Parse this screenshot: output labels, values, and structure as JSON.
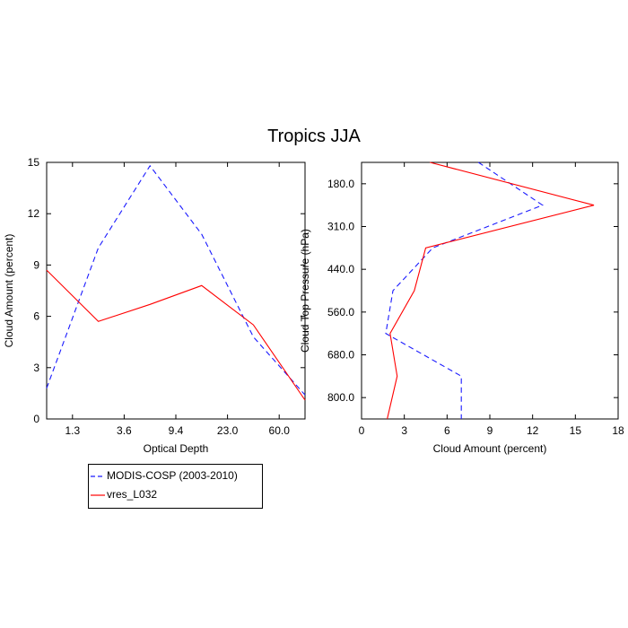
{
  "title": "Tropics JJA",
  "colors": {
    "modis": "#1a1aff",
    "model": "#ff0000",
    "axis": "#000000"
  },
  "legend": {
    "entries": [
      {
        "label": "MODIS-COSP (2003-2010)",
        "color": "#1a1aff",
        "dash": true
      },
      {
        "label": "vres_L032",
        "color": "#ff0000",
        "dash": false
      }
    ]
  },
  "chart_data": [
    {
      "type": "line",
      "xlabel": "Optical Depth",
      "ylabel": "Cloud Amount (percent)",
      "x_tick_labels": [
        "1.3",
        "3.6",
        "9.4",
        "23.0",
        "60.0"
      ],
      "y_ticks": [
        "0",
        "3",
        "6",
        "9",
        "12",
        "15"
      ],
      "ylim": [
        0,
        15
      ],
      "grid": false,
      "x_categories_count": 6,
      "series": [
        {
          "name": "MODIS-COSP (2003-2010)",
          "x": [
            0,
            1,
            2,
            3,
            4,
            5
          ],
          "values": [
            1.8,
            10.0,
            14.8,
            10.8,
            4.8,
            1.4
          ]
        },
        {
          "name": "vres_L032",
          "x": [
            0,
            1,
            2,
            3,
            4,
            5
          ],
          "values": [
            8.7,
            5.7,
            6.7,
            7.8,
            5.5,
            1.1
          ]
        }
      ]
    },
    {
      "type": "line",
      "xlabel": "Cloud Amount (percent)",
      "ylabel": "Cloud Top Pressure (hPa)",
      "x_ticks": [
        "0",
        "3",
        "6",
        "9",
        "12",
        "15",
        "18"
      ],
      "xlim": [
        0,
        18
      ],
      "y_tick_labels": [
        "180.0",
        "310.0",
        "440.0",
        "560.0",
        "680.0",
        "800.0"
      ],
      "grid": false,
      "y_levels_count": 7,
      "series": [
        {
          "name": "MODIS-COSP (2003-2010)",
          "y": [
            0,
            1,
            2,
            3,
            4,
            5,
            6
          ],
          "values": [
            8.2,
            12.7,
            5.0,
            2.2,
            1.7,
            7.0,
            7.0
          ]
        },
        {
          "name": "vres_L032",
          "y": [
            0,
            1,
            2,
            3,
            4,
            5,
            6
          ],
          "values": [
            4.8,
            16.3,
            4.5,
            3.7,
            2.0,
            2.5,
            1.8
          ]
        }
      ]
    }
  ]
}
